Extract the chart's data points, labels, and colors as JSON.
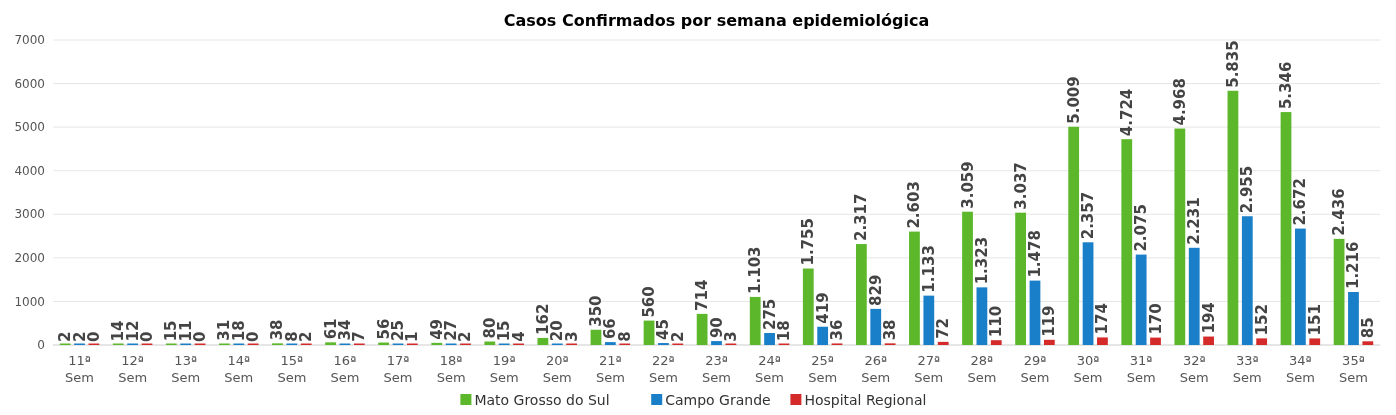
{
  "chart_data": {
    "type": "bar",
    "title": "Casos Confirmados por semana epidemiológica",
    "categories": [
      "11ª Sem",
      "12ª Sem",
      "13ª Sem",
      "14ª Sem",
      "15ª Sem",
      "16ª Sem",
      "17ª Sem",
      "18ª Sem",
      "19ª Sem",
      "20ª Sem",
      "21ª Sem",
      "22ª Sem",
      "23ª Sem",
      "24ª Sem",
      "25ª Sem",
      "26ª Sem",
      "27ª Sem",
      "28ª Sem",
      "29ª Sem",
      "30ª Sem",
      "31ª Sem",
      "32ª Sem",
      "33ª Sem",
      "34ª Sem",
      "35ª Sem"
    ],
    "series": [
      {
        "name": "Mato Grosso do Sul",
        "color": "#5cb82a",
        "values": [
          2,
          14,
          15,
          31,
          38,
          61,
          56,
          49,
          80,
          162,
          350,
          560,
          714,
          1103,
          1755,
          2317,
          2603,
          3059,
          3037,
          5009,
          4724,
          4968,
          5835,
          5346,
          2436
        ],
        "value_labels": [
          "2",
          "14",
          "15",
          "31",
          "38",
          "61",
          "56",
          "49",
          "80",
          "162",
          "350",
          "560",
          "714",
          "1.103",
          "1.755",
          "2.317",
          "2.603",
          "3.059",
          "3.037",
          "5.009",
          "4.724",
          "4.968",
          "5.835",
          "5.346",
          "2.436"
        ]
      },
      {
        "name": "Campo Grande",
        "color": "#1a7fc9",
        "values": [
          2,
          12,
          11,
          18,
          8,
          34,
          25,
          27,
          15,
          20,
          66,
          45,
          90,
          275,
          419,
          829,
          1133,
          1323,
          1478,
          2357,
          2075,
          2231,
          2955,
          2672,
          1216
        ],
        "value_labels": [
          "2",
          "12",
          "11",
          "18",
          "8",
          "34",
          "25",
          "27",
          "15",
          "20",
          "66",
          "45",
          "90",
          "275",
          "419",
          "829",
          "1.133",
          "1.323",
          "1.478",
          "2.357",
          "2.075",
          "2.231",
          "2.955",
          "2.672",
          "1.216"
        ]
      },
      {
        "name": "Hospital Regional",
        "color": "#d42a2a",
        "values": [
          0,
          0,
          0,
          0,
          2,
          7,
          1,
          2,
          4,
          3,
          8,
          2,
          3,
          18,
          36,
          38,
          72,
          110,
          119,
          174,
          170,
          194,
          152,
          151,
          85
        ],
        "value_labels": [
          "0",
          "0",
          "0",
          "0",
          "2",
          "7",
          "1",
          "2",
          "4",
          "3",
          "8",
          "2",
          "3",
          "18",
          "36",
          "38",
          "72",
          "110",
          "119",
          "174",
          "170",
          "194",
          "152",
          "151",
          "85"
        ]
      }
    ],
    "ylim": [
      0,
      7000
    ],
    "yticks": [
      0,
      1000,
      2000,
      3000,
      4000,
      5000,
      6000,
      7000
    ],
    "grid": "y",
    "legend": "bottom"
  }
}
